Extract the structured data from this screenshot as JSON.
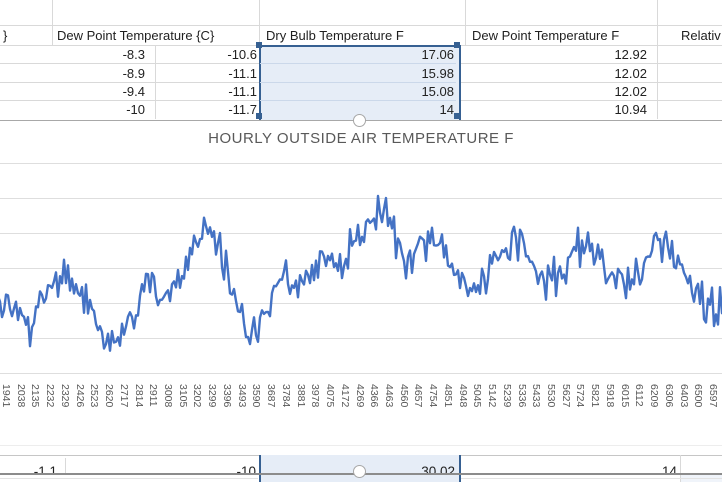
{
  "table": {
    "headers": [
      "}",
      "Dew Point Temperature {C}",
      "Dry Bulb Temperature F",
      "Dew Point Temperature F",
      "Relativ"
    ],
    "rows": [
      [
        "-8.3",
        "-10.6",
        "17.06",
        "12.92"
      ],
      [
        "-8.9",
        "-11.1",
        "15.98",
        "12.02"
      ],
      [
        "-9.4",
        "-11.1",
        "15.08",
        "12.02"
      ],
      [
        "-10",
        "-11.7",
        "14",
        "10.94"
      ]
    ],
    "bottom_row": [
      "-1.1",
      "-10",
      "30.02",
      "14"
    ],
    "selected_column": "Dry Bulb Temperature F"
  },
  "chart_data": {
    "type": "line",
    "title": "HOURLY OUTSIDE AIR TEMPERATURE F",
    "xlabel": "",
    "ylabel": "",
    "legend": "none",
    "y_axis_labels_visible": false,
    "y_gridlines": 7,
    "ylim_estimate_F": [
      20,
      90
    ],
    "tick_step": 97,
    "categories": [
      1941,
      2038,
      2135,
      2232,
      2329,
      2426,
      2523,
      2620,
      2717,
      2814,
      2911,
      3008,
      3105,
      3202,
      3299,
      3396,
      3493,
      3590,
      3687,
      3784,
      3881,
      3978,
      4075,
      4172,
      4269,
      4366,
      4463,
      4560,
      4657,
      4754,
      4851,
      4948,
      5045,
      5142,
      5239,
      5336,
      5433,
      5530,
      5627,
      5724,
      5821,
      5918,
      6015,
      6112,
      6209,
      6306,
      6403,
      6500,
      6597
    ],
    "series": [
      {
        "name": "Dry Bulb Temperature F",
        "trend_values": [
          39,
          37,
          32,
          41,
          49,
          45,
          38,
          32,
          28,
          35,
          47,
          41,
          44,
          54,
          61,
          55,
          41,
          32,
          38,
          47,
          44,
          49,
          54,
          49,
          58,
          62,
          69,
          55,
          52,
          59,
          55,
          49,
          41,
          47,
          55,
          59,
          52,
          47,
          49,
          55,
          58,
          51,
          45,
          49,
          54,
          57,
          51,
          44,
          39
        ]
      }
    ],
    "noise_amplitude_F": 7,
    "line_color": "#4472C4"
  },
  "colors": {
    "selection_border": "#366092",
    "selection_fill": "#e6edf7",
    "sheet_gridline": "#d9d9d9",
    "chart_gridline": "#dedede",
    "chart_frame": "#a8a8a8",
    "title_gray": "#595959",
    "series_blue": "#4472C4"
  }
}
